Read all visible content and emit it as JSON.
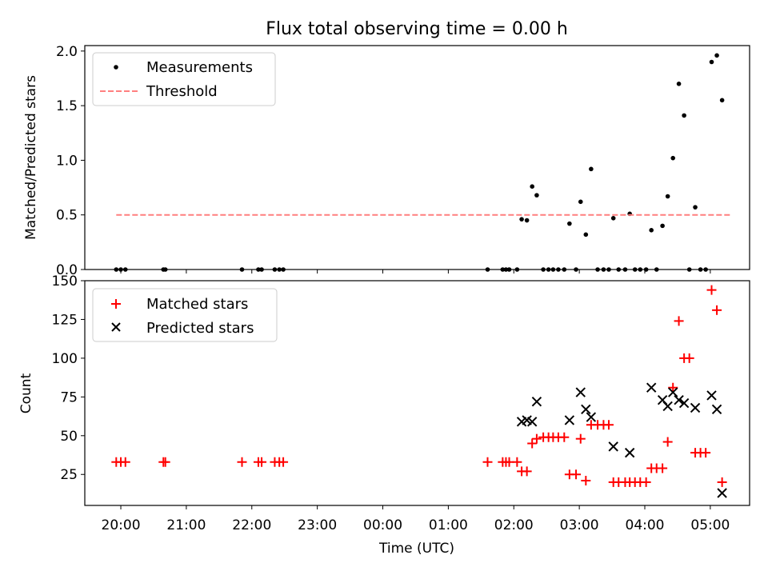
{
  "chart_data": {
    "title": "Flux total observing time = 0.00 h",
    "xlabel": "Time (UTC)",
    "x_tick_labels": [
      "20:00",
      "21:00",
      "22:00",
      "23:00",
      "00:00",
      "01:00",
      "02:00",
      "03:00",
      "04:00",
      "05:00"
    ],
    "x_tick_hours": [
      0,
      1,
      2,
      3,
      4,
      5,
      6,
      7,
      8,
      9
    ],
    "xlim_hours": [
      -0.55,
      9.6
    ],
    "charts": [
      {
        "type": "scatter",
        "ylabel": "Matched/Predicted stars",
        "ylim": [
          0,
          2.05
        ],
        "y_ticks": [
          0,
          0.5,
          1.0,
          1.5,
          2.0
        ],
        "y_tick_labels": [
          "0.0",
          "0.5",
          "1.0",
          "1.5",
          "2.0"
        ],
        "legend_position": "upper-left",
        "series": [
          {
            "name": "Measurements",
            "marker": "dot",
            "color": "#000000",
            "points": [
              [
                -0.07,
                0
              ],
              [
                0.0,
                0
              ],
              [
                0.07,
                0
              ],
              [
                0.65,
                0
              ],
              [
                0.68,
                0
              ],
              [
                1.85,
                0
              ],
              [
                2.1,
                0
              ],
              [
                2.15,
                0
              ],
              [
                2.35,
                0
              ],
              [
                2.42,
                0
              ],
              [
                2.48,
                0
              ],
              [
                5.6,
                0
              ],
              [
                5.83,
                0
              ],
              [
                5.88,
                0
              ],
              [
                5.93,
                0
              ],
              [
                6.05,
                0
              ],
              [
                6.12,
                0.46
              ],
              [
                6.2,
                0.45
              ],
              [
                6.28,
                0.76
              ],
              [
                6.35,
                0.68
              ],
              [
                6.45,
                0
              ],
              [
                6.53,
                0
              ],
              [
                6.6,
                0
              ],
              [
                6.68,
                0
              ],
              [
                6.77,
                0
              ],
              [
                6.85,
                0.42
              ],
              [
                6.95,
                0
              ],
              [
                7.02,
                0.62
              ],
              [
                7.1,
                0.32
              ],
              [
                7.18,
                0.92
              ],
              [
                7.28,
                0
              ],
              [
                7.37,
                0
              ],
              [
                7.45,
                0
              ],
              [
                7.52,
                0.47
              ],
              [
                7.6,
                0
              ],
              [
                7.7,
                0
              ],
              [
                7.77,
                0.51
              ],
              [
                7.85,
                0
              ],
              [
                7.93,
                0
              ],
              [
                8.02,
                0
              ],
              [
                8.1,
                0.36
              ],
              [
                8.18,
                0
              ],
              [
                8.27,
                0.4
              ],
              [
                8.35,
                0.67
              ],
              [
                8.43,
                1.02
              ],
              [
                8.52,
                1.7
              ],
              [
                8.6,
                1.41
              ],
              [
                8.68,
                0
              ],
              [
                8.77,
                0.57
              ],
              [
                8.85,
                0
              ],
              [
                8.93,
                0
              ],
              [
                9.02,
                1.9
              ],
              [
                9.1,
                1.96
              ],
              [
                9.18,
                1.55
              ]
            ]
          },
          {
            "name": "Threshold",
            "marker": "dashed-line",
            "color": "#ff7f7f",
            "points": [
              [
                -0.07,
                0.5
              ],
              [
                9.3,
                0.5
              ]
            ]
          }
        ]
      },
      {
        "type": "scatter",
        "ylabel": "Count",
        "ylim": [
          5,
          150
        ],
        "y_ticks": [
          25,
          50,
          75,
          100,
          125,
          150
        ],
        "y_tick_labels": [
          "25",
          "50",
          "75",
          "100",
          "125",
          "150"
        ],
        "legend_position": "upper-left",
        "series": [
          {
            "name": "Matched stars",
            "marker": "plus",
            "color": "#ff0000",
            "points": [
              [
                -0.07,
                33
              ],
              [
                0.0,
                33
              ],
              [
                0.07,
                33
              ],
              [
                0.65,
                33
              ],
              [
                0.68,
                33
              ],
              [
                1.85,
                33
              ],
              [
                2.1,
                33
              ],
              [
                2.15,
                33
              ],
              [
                2.35,
                33
              ],
              [
                2.42,
                33
              ],
              [
                2.48,
                33
              ],
              [
                5.6,
                33
              ],
              [
                5.83,
                33
              ],
              [
                5.88,
                33
              ],
              [
                5.93,
                33
              ],
              [
                6.05,
                33
              ],
              [
                6.12,
                27
              ],
              [
                6.2,
                27
              ],
              [
                6.28,
                45
              ],
              [
                6.35,
                48
              ],
              [
                6.45,
                49
              ],
              [
                6.53,
                49
              ],
              [
                6.6,
                49
              ],
              [
                6.68,
                49
              ],
              [
                6.77,
                49
              ],
              [
                6.85,
                25
              ],
              [
                6.95,
                25
              ],
              [
                7.02,
                48
              ],
              [
                7.1,
                21
              ],
              [
                7.18,
                57
              ],
              [
                7.28,
                57
              ],
              [
                7.37,
                57
              ],
              [
                7.45,
                57
              ],
              [
                7.52,
                20
              ],
              [
                7.6,
                20
              ],
              [
                7.7,
                20
              ],
              [
                7.77,
                20
              ],
              [
                7.85,
                20
              ],
              [
                7.93,
                20
              ],
              [
                8.02,
                20
              ],
              [
                8.1,
                29
              ],
              [
                8.18,
                29
              ],
              [
                8.27,
                29
              ],
              [
                8.35,
                46
              ],
              [
                8.43,
                81
              ],
              [
                8.52,
                124
              ],
              [
                8.6,
                100
              ],
              [
                8.68,
                100
              ],
              [
                8.77,
                39
              ],
              [
                8.85,
                39
              ],
              [
                8.93,
                39
              ],
              [
                9.02,
                144
              ],
              [
                9.1,
                131
              ],
              [
                9.18,
                20
              ]
            ]
          },
          {
            "name": "Predicted stars",
            "marker": "x",
            "color": "#000000",
            "points": [
              [
                6.12,
                59
              ],
              [
                6.2,
                60
              ],
              [
                6.28,
                59
              ],
              [
                6.35,
                72
              ],
              [
                6.85,
                60
              ],
              [
                7.02,
                78
              ],
              [
                7.1,
                67
              ],
              [
                7.18,
                62
              ],
              [
                7.52,
                43
              ],
              [
                7.77,
                39
              ],
              [
                8.1,
                81
              ],
              [
                8.27,
                73
              ],
              [
                8.35,
                69
              ],
              [
                8.43,
                78
              ],
              [
                8.52,
                73
              ],
              [
                8.6,
                71
              ],
              [
                8.77,
                68
              ],
              [
                9.02,
                76
              ],
              [
                9.1,
                67
              ],
              [
                9.18,
                13
              ]
            ]
          }
        ]
      }
    ]
  }
}
